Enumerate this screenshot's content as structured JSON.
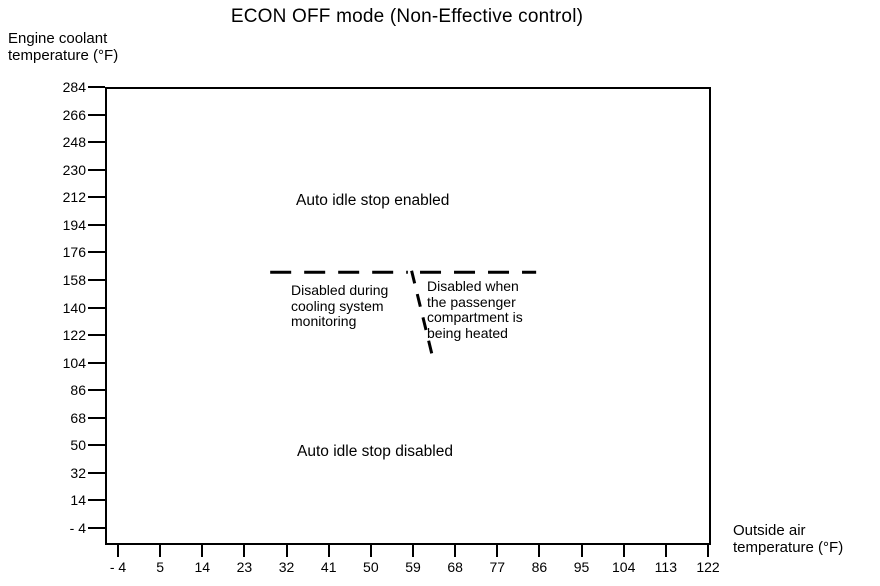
{
  "title": "ECON OFF mode (Non-Effective control)",
  "y_axis": {
    "label_line1": "Engine coolant",
    "label_line2": "temperature (°F)"
  },
  "x_axis": {
    "label_line1": "Outside air",
    "label_line2": "temperature (°F)"
  },
  "annotations": {
    "enabled": "Auto idle stop enabled",
    "disabled": "Auto idle stop disabled",
    "cooling": [
      "Disabled during",
      "cooling system",
      "monitoring"
    ],
    "heating": [
      "Disabled when",
      "the passenger",
      "compartment is",
      "being heated"
    ]
  },
  "chart_data": {
    "type": "line",
    "title": "ECON OFF mode (Non-Effective control)",
    "xlabel": "Outside air temperature (°F)",
    "ylabel": "Engine coolant temperature (°F)",
    "xlim": [
      -4,
      122
    ],
    "ylim": [
      -4,
      284
    ],
    "grid": false,
    "legend": false,
    "x_ticks": [
      -4,
      5,
      14,
      23,
      32,
      41,
      50,
      59,
      68,
      77,
      86,
      95,
      104,
      113,
      122
    ],
    "x_tick_labels": [
      "- 4",
      "5",
      "14",
      "23",
      "32",
      "41",
      "50",
      "59",
      "68",
      "77",
      "86",
      "95",
      "104",
      "113",
      "122"
    ],
    "y_ticks": [
      284,
      266,
      248,
      230,
      212,
      194,
      176,
      158,
      140,
      122,
      104,
      86,
      68,
      50,
      32,
      14,
      -4
    ],
    "y_tick_labels": [
      "284",
      "266",
      "248",
      "230",
      "212",
      "194",
      "176",
      "158",
      "140",
      "122",
      "104",
      "86",
      "68",
      "50",
      "32",
      "14",
      "- 4"
    ],
    "series": [
      {
        "name": "idle-stop-threshold-left",
        "style": "dashed",
        "points": [
          [
            28.5,
            163
          ],
          [
            57.9,
            163
          ]
        ]
      },
      {
        "name": "idle-stop-threshold-right",
        "style": "dashed",
        "points": [
          [
            60.5,
            163
          ],
          [
            85.3,
            163
          ]
        ]
      },
      {
        "name": "heating-boundary-diagonal",
        "style": "dashed",
        "points": [
          [
            58.7,
            164
          ],
          [
            63,
            110
          ]
        ]
      }
    ],
    "regions": [
      {
        "label": "Auto idle stop enabled",
        "position": "above dashed threshold line"
      },
      {
        "label": "Auto idle stop disabled",
        "position": "below dashed threshold line"
      },
      {
        "label": "Disabled during cooling system monitoring",
        "position": "below threshold, left of diagonal (outside air below ~59°F)"
      },
      {
        "label": "Disabled when the passenger compartment is being heated",
        "position": "below threshold, right of diagonal (outside air above ~59°F)"
      }
    ],
    "colors": {
      "line": "#000000",
      "text": "#000000",
      "background": "#ffffff"
    }
  }
}
